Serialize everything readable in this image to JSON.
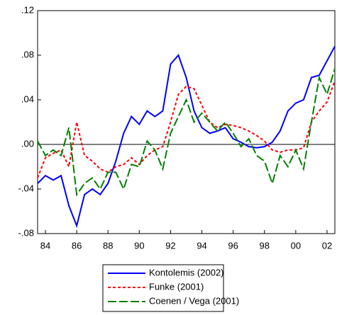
{
  "chart_data": {
    "type": "line",
    "x": [
      1983.5,
      1984,
      1984.5,
      1985,
      1985.5,
      1986,
      1986.5,
      1987,
      1987.5,
      1988,
      1988.5,
      1989,
      1989.5,
      1990,
      1990.5,
      1991,
      1991.5,
      1992,
      1992.5,
      1993,
      1993.5,
      1994,
      1994.5,
      1995,
      1995.5,
      1996,
      1996.5,
      1997,
      1997.5,
      1998,
      1998.5,
      1999,
      1999.5,
      2000,
      2000.5,
      2001,
      2001.5,
      2002,
      2002.5
    ],
    "series": [
      {
        "name": "Kontolemis (2002)",
        "color": "#0000ff",
        "dash": "none",
        "values": [
          -0.035,
          -0.028,
          -0.032,
          -0.028,
          -0.055,
          -0.073,
          -0.045,
          -0.04,
          -0.045,
          -0.035,
          -0.015,
          0.01,
          0.025,
          0.018,
          0.03,
          0.025,
          0.03,
          0.072,
          0.08,
          0.06,
          0.03,
          0.015,
          0.01,
          0.012,
          0.015,
          0.005,
          0.002,
          -0.002,
          -0.003,
          -0.002,
          0.002,
          0.012,
          0.03,
          0.037,
          0.04,
          0.06,
          0.062,
          0.075,
          0.088
        ]
      },
      {
        "name": "Funke (2001)",
        "color": "#ff0000",
        "dash": "4,3",
        "values": [
          -0.03,
          -0.012,
          -0.008,
          -0.005,
          -0.02,
          0.02,
          -0.01,
          -0.015,
          -0.022,
          -0.025,
          -0.02,
          -0.018,
          -0.012,
          -0.018,
          -0.01,
          -0.005,
          -0.002,
          0.02,
          0.045,
          0.052,
          0.05,
          0.035,
          0.02,
          0.015,
          0.018,
          0.017,
          0.015,
          0.012,
          0.008,
          0.003,
          -0.005,
          -0.007,
          -0.005,
          -0.005,
          -0.003,
          0.02,
          0.03,
          0.038,
          0.057
        ]
      },
      {
        "name": "Coenen / Vega (2001)",
        "color": "#008000",
        "dash": "12,4",
        "values": [
          0.003,
          -0.01,
          -0.005,
          -0.01,
          0.015,
          -0.045,
          -0.035,
          -0.03,
          -0.04,
          -0.025,
          -0.025,
          -0.04,
          -0.018,
          -0.02,
          0.003,
          -0.005,
          -0.022,
          0.01,
          0.025,
          0.04,
          0.02,
          0.028,
          0.02,
          0.012,
          0.02,
          0.01,
          -0.002,
          0.005,
          -0.01,
          -0.015,
          -0.035,
          -0.01,
          -0.02,
          -0.005,
          -0.022,
          0.02,
          0.06,
          0.045,
          0.068
        ]
      }
    ],
    "xlim": [
      1983.5,
      2002.5
    ],
    "xticks": [
      {
        "value": 1984,
        "label": "84"
      },
      {
        "value": 1986,
        "label": "86"
      },
      {
        "value": 1988,
        "label": "88"
      },
      {
        "value": 1990,
        "label": "90"
      },
      {
        "value": 1992,
        "label": "92"
      },
      {
        "value": 1994,
        "label": "94"
      },
      {
        "value": 1996,
        "label": "96"
      },
      {
        "value": 1998,
        "label": "98"
      },
      {
        "value": 2000,
        "label": "00"
      },
      {
        "value": 2002,
        "label": "02"
      }
    ],
    "ylim": [
      -0.08,
      0.12
    ],
    "yticks": [
      {
        "value": -0.08,
        "label": "-.08"
      },
      {
        "value": -0.04,
        "label": "-.04"
      },
      {
        "value": 0,
        "label": ".00"
      },
      {
        "value": 0.04,
        "label": ".04"
      },
      {
        "value": 0.08,
        "label": ".08"
      },
      {
        "value": 0.12,
        "label": ".12"
      }
    ],
    "zero_line": true,
    "legend": "bottom"
  }
}
